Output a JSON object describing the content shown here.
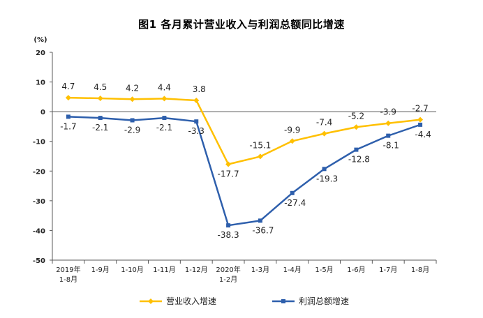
{
  "chart_data": {
    "type": "line",
    "title": "图1  各月累计营业收入与利润总额同比增速",
    "ylabel": "(%)",
    "ylim": [
      -50,
      20
    ],
    "yticks": [
      "20",
      "10",
      "0",
      "-10",
      "-20",
      "-30",
      "-40",
      "-50"
    ],
    "categories": [
      [
        "2019年",
        "1-8月"
      ],
      [
        "1-9月"
      ],
      [
        "1-10月"
      ],
      [
        "1-11月"
      ],
      [
        "1-12月"
      ],
      [
        "2020年",
        "1-2月"
      ],
      [
        "1-3月"
      ],
      [
        "1-4月"
      ],
      [
        "1-5月"
      ],
      [
        "1-6月"
      ],
      [
        "1-7月"
      ],
      [
        "1-8月"
      ]
    ],
    "grid": false,
    "legend_position": "bottom",
    "series": [
      {
        "name": "营业收入增速",
        "color": "#FFC000",
        "marker": "diamond",
        "values": [
          4.7,
          4.5,
          4.2,
          4.4,
          3.8,
          -17.7,
          -15.1,
          -9.9,
          -7.4,
          -5.2,
          -3.9,
          -2.7
        ],
        "labels": [
          "4.7",
          "4.5",
          "4.2",
          "4.4",
          "3.8",
          "-17.7",
          "-15.1",
          "-9.9",
          "-7.4",
          "-5.2",
          "-3.9",
          "-2.7"
        ]
      },
      {
        "name": "利润总额增速",
        "color": "#2E5FAC",
        "marker": "square",
        "values": [
          -1.7,
          -2.1,
          -2.9,
          -2.1,
          -3.3,
          -38.3,
          -36.7,
          -27.4,
          -19.3,
          -12.8,
          -8.1,
          -4.4
        ],
        "labels": [
          "-1.7",
          "-2.1",
          "-2.9",
          "-2.1",
          "-3.3",
          "-38.3",
          "-36.7",
          "-27.4",
          "-19.3",
          "-12.8",
          "-8.1",
          "-4.4"
        ]
      }
    ]
  }
}
